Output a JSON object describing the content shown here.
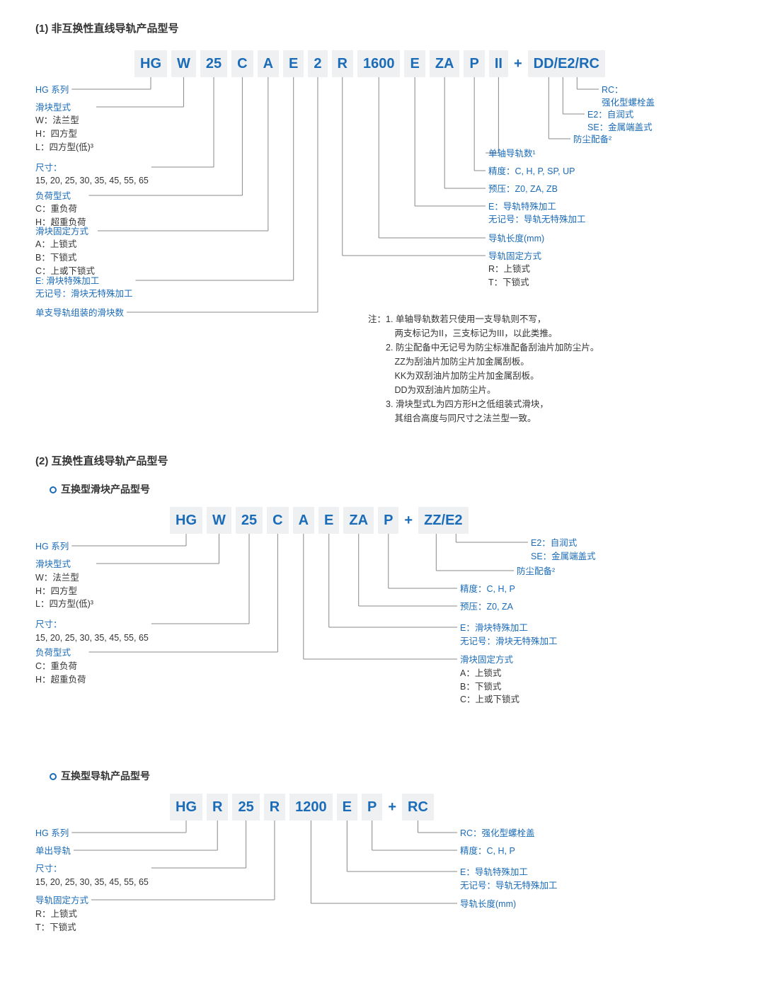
{
  "colors": {
    "accent": "#1a6bb8",
    "segbg": "#eef0f2",
    "text": "#333",
    "line": "#888"
  },
  "s1": {
    "title": "(1) 非互换性直线导轨产品型号",
    "segs": [
      "HG",
      "W",
      "25",
      "C",
      "A",
      "E",
      "2",
      "R",
      "1600",
      "E",
      "ZA",
      "P",
      "II",
      "+",
      "DD/E2/RC"
    ],
    "left": [
      {
        "hdr": "HG 系列",
        "body": []
      },
      {
        "hdr": "滑块型式",
        "body": [
          "W：法兰型",
          "H：四方型",
          "L：四方型(低)³"
        ]
      },
      {
        "hdr": "尺寸：",
        "body": [
          "15, 20, 25, 30, 35, 45, 55, 65"
        ]
      },
      {
        "hdr": "负荷型式",
        "body": [
          "C：重负荷",
          "H：超重负荷"
        ]
      },
      {
        "hdr": "滑块固定方式",
        "body": [
          "A：上锁式",
          "B：下锁式",
          "C：上或下锁式"
        ]
      },
      {
        "hdr": "E: 滑块特殊加工",
        "body": [
          "无记号：滑块无特殊加工"
        ]
      },
      {
        "hdr": "单支导轨组装的滑块数",
        "body": []
      }
    ],
    "right": [
      {
        "hdr": "RC：",
        "body": [
          "强化型螺栓盖"
        ]
      },
      {
        "hdr": "E2：自润式",
        "body": [
          "SE：金属端盖式"
        ]
      },
      {
        "hdr": "防尘配备²",
        "body": []
      },
      {
        "hdr": "单轴导轨数¹",
        "body": []
      },
      {
        "hdr": "精度：C, H, P, SP, UP",
        "body": []
      },
      {
        "hdr": "预压：Z0, ZA, ZB",
        "body": []
      },
      {
        "hdr": "E：导轨特殊加工",
        "body": [
          "无记号：导轨无特殊加工"
        ]
      },
      {
        "hdr": "导轨长度(mm)",
        "body": []
      },
      {
        "hdr": "导轨固定方式",
        "body": [
          "R：上锁式",
          "T：下锁式"
        ]
      }
    ],
    "notes": [
      "注：1. 单轴导轨数若只使用一支导轨则不写，",
      "　　　两支标记为II，三支标记为III，以此类推。",
      "　　2. 防尘配备中无记号为防尘标准配备刮油片加防尘片。",
      "　　　ZZ为刮油片加防尘片加金属刮板。",
      "　　　KK为双刮油片加防尘片加金属刮板。",
      "　　　DD为双刮油片加防尘片。",
      "　　3. 滑块型式L为四方形H之低组装式滑块，",
      "　　　其组合高度与同尺寸之法兰型一致。"
    ]
  },
  "s2": {
    "title": "(2) 互换性直线导轨产品型号",
    "sub1": "互换型滑块产品型号",
    "segs": [
      "HG",
      "W",
      "25",
      "C",
      "A",
      "E",
      "ZA",
      "P",
      "+",
      "ZZ/E2"
    ],
    "left": [
      {
        "hdr": "HG 系列",
        "body": []
      },
      {
        "hdr": "滑块型式",
        "body": [
          "W：法兰型",
          "H：四方型",
          "L：四方型(低)³"
        ]
      },
      {
        "hdr": "尺寸：",
        "body": [
          "15, 20, 25, 30, 35, 45, 55, 65"
        ]
      },
      {
        "hdr": "负荷型式",
        "body": [
          "C：重负荷",
          "H：超重负荷"
        ]
      }
    ],
    "right": [
      {
        "hdr": "E2：自润式",
        "body": [
          "SE：金属端盖式"
        ]
      },
      {
        "hdr": "防尘配备²",
        "body": []
      },
      {
        "hdr": "精度：C, H, P",
        "body": []
      },
      {
        "hdr": "预压：Z0, ZA",
        "body": []
      },
      {
        "hdr": "E：滑块特殊加工",
        "body": [
          "无记号：滑块无特殊加工"
        ]
      },
      {
        "hdr": "滑块固定方式",
        "body": [
          "A：上锁式",
          "B：下锁式",
          "C：上或下锁式"
        ]
      }
    ]
  },
  "s3": {
    "sub": "互换型导轨产品型号",
    "segs": [
      "HG",
      "R",
      "25",
      "R",
      "1200",
      "E",
      "P",
      "+",
      "RC"
    ],
    "left": [
      {
        "hdr": "HG 系列",
        "body": []
      },
      {
        "hdr": "单出导轨",
        "body": []
      },
      {
        "hdr": "尺寸：",
        "body": [
          "15, 20, 25, 30, 35, 45, 55, 65"
        ]
      },
      {
        "hdr": "导轨固定方式",
        "body": [
          "R：上锁式",
          "T：下锁式"
        ]
      }
    ],
    "right": [
      {
        "hdr": "RC：强化型螺栓盖",
        "body": []
      },
      {
        "hdr": "精度：C, H, P",
        "body": []
      },
      {
        "hdr": "E：导轨特殊加工",
        "body": [
          "无记号：导轨无特殊加工"
        ]
      },
      {
        "hdr": "导轨长度(mm)",
        "body": []
      }
    ]
  }
}
